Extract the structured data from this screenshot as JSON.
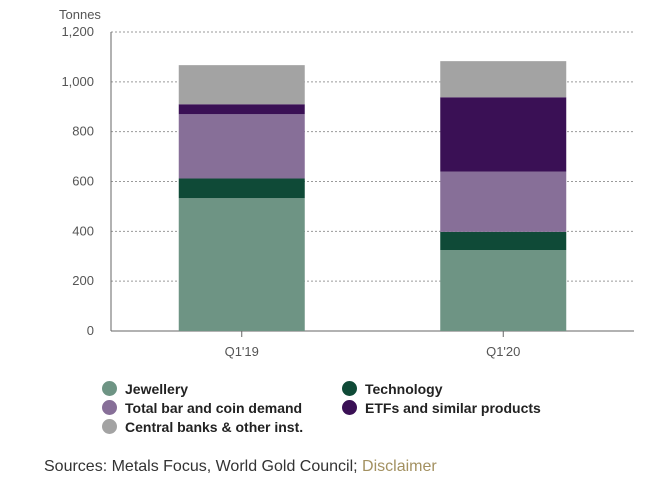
{
  "chart_data": {
    "type": "bar",
    "stacked": true,
    "ylabel": "Tonnes",
    "ylim": [
      0,
      1200
    ],
    "yticks": [
      "0",
      "200",
      "400",
      "600",
      "800",
      "1,000",
      "1,200"
    ],
    "ytick_values": [
      0,
      200,
      400,
      600,
      800,
      1000,
      1200
    ],
    "grid": true,
    "legend_position": "bottom",
    "categories": [
      "Q1'19",
      "Q1'20"
    ],
    "series": [
      {
        "name": "Jewellery",
        "color": "#6e9484",
        "values": [
          533,
          325
        ]
      },
      {
        "name": "Technology",
        "color": "#0f4a37",
        "values": [
          79,
          73
        ]
      },
      {
        "name": "Total bar and coin demand",
        "color": "#876f98",
        "values": [
          258,
          242
        ]
      },
      {
        "name": "ETFs and similar products",
        "color": "#3a1055",
        "values": [
          40,
          298
        ]
      },
      {
        "name": "Central banks & other inst.",
        "color": "#a3a3a3",
        "values": [
          157,
          145
        ]
      }
    ]
  },
  "legend": {
    "items": [
      {
        "label": "Jewellery",
        "color": "#6e9484"
      },
      {
        "label": "Technology",
        "color": "#0f4a37"
      },
      {
        "label": "Total bar and coin demand",
        "color": "#876f98"
      },
      {
        "label": "ETFs and similar products",
        "color": "#3a1055"
      },
      {
        "label": "Central banks & other inst.",
        "color": "#a3a3a3"
      }
    ]
  },
  "footer": {
    "sources_text": "Sources: Metals Focus, World Gold Council; ",
    "disclaimer_link": "Disclaimer",
    "link_color": "#a39161"
  }
}
